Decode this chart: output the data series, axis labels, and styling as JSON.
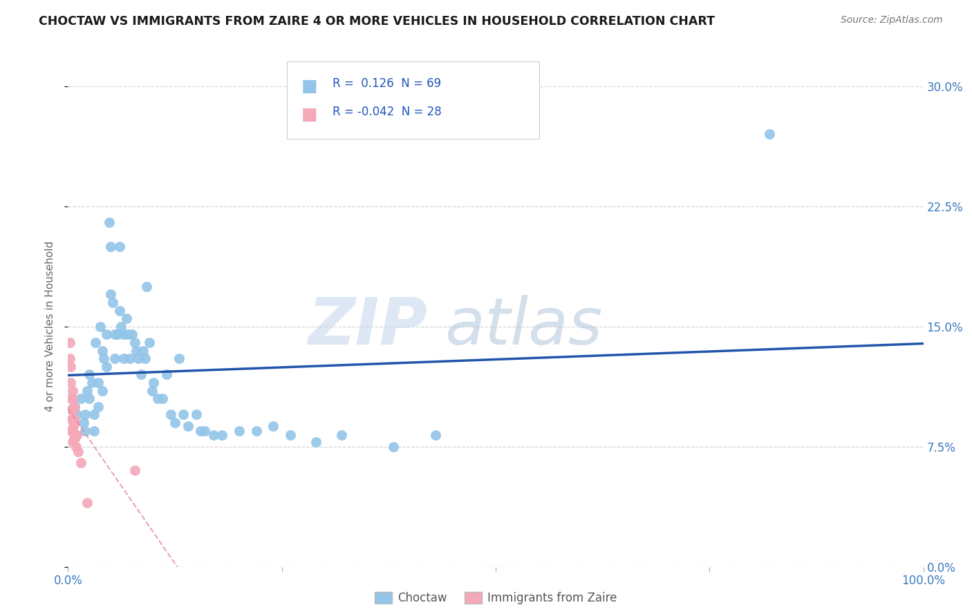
{
  "title": "CHOCTAW VS IMMIGRANTS FROM ZAIRE 4 OR MORE VEHICLES IN HOUSEHOLD CORRELATION CHART",
  "source": "Source: ZipAtlas.com",
  "ylabel": "4 or more Vehicles in Household",
  "choctaw_R": 0.126,
  "choctaw_N": 69,
  "zaire_R": -0.042,
  "zaire_N": 28,
  "xlim": [
    0.0,
    1.0
  ],
  "ylim": [
    0.0,
    0.3
  ],
  "xticks": [
    0.0,
    0.25,
    0.5,
    0.75,
    1.0
  ],
  "xtick_labels_show": [
    "0.0%",
    "",
    "",
    "",
    "100.0%"
  ],
  "yticks": [
    0.0,
    0.075,
    0.15,
    0.225,
    0.3
  ],
  "ytick_labels": [
    "0.0%",
    "7.5%",
    "15.0%",
    "22.5%",
    "30.0%"
  ],
  "choctaw_color": "#92c5e8",
  "zaire_color": "#f4a8b8",
  "choctaw_line_color": "#2255aa",
  "zaire_line_color": "#e88098",
  "background_color": "#ffffff",
  "watermark_zip": "ZIP",
  "watermark_atlas": "atlas",
  "choctaw_x": [
    0.008,
    0.01,
    0.015,
    0.018,
    0.02,
    0.02,
    0.022,
    0.025,
    0.025,
    0.028,
    0.03,
    0.03,
    0.032,
    0.035,
    0.035,
    0.038,
    0.04,
    0.04,
    0.042,
    0.045,
    0.045,
    0.048,
    0.05,
    0.05,
    0.052,
    0.055,
    0.055,
    0.058,
    0.06,
    0.06,
    0.062,
    0.065,
    0.065,
    0.068,
    0.07,
    0.072,
    0.075,
    0.078,
    0.08,
    0.082,
    0.085,
    0.088,
    0.09,
    0.092,
    0.095,
    0.098,
    0.1,
    0.105,
    0.11,
    0.115,
    0.12,
    0.125,
    0.13,
    0.135,
    0.14,
    0.15,
    0.155,
    0.16,
    0.17,
    0.18,
    0.2,
    0.22,
    0.24,
    0.26,
    0.29,
    0.32,
    0.38,
    0.43,
    0.82
  ],
  "choctaw_y": [
    0.1,
    0.095,
    0.105,
    0.09,
    0.095,
    0.085,
    0.11,
    0.12,
    0.105,
    0.115,
    0.095,
    0.085,
    0.14,
    0.115,
    0.1,
    0.15,
    0.135,
    0.11,
    0.13,
    0.145,
    0.125,
    0.215,
    0.2,
    0.17,
    0.165,
    0.145,
    0.13,
    0.145,
    0.2,
    0.16,
    0.15,
    0.145,
    0.13,
    0.155,
    0.145,
    0.13,
    0.145,
    0.14,
    0.135,
    0.13,
    0.12,
    0.135,
    0.13,
    0.175,
    0.14,
    0.11,
    0.115,
    0.105,
    0.105,
    0.12,
    0.095,
    0.09,
    0.13,
    0.095,
    0.088,
    0.095,
    0.085,
    0.085,
    0.082,
    0.082,
    0.085,
    0.085,
    0.088,
    0.082,
    0.078,
    0.082,
    0.075,
    0.082,
    0.27
  ],
  "zaire_x": [
    0.002,
    0.002,
    0.003,
    0.003,
    0.004,
    0.004,
    0.004,
    0.004,
    0.005,
    0.005,
    0.005,
    0.005,
    0.005,
    0.005,
    0.006,
    0.006,
    0.007,
    0.007,
    0.007,
    0.008,
    0.008,
    0.009,
    0.009,
    0.01,
    0.012,
    0.015,
    0.022,
    0.078
  ],
  "zaire_y": [
    0.14,
    0.13,
    0.125,
    0.115,
    0.105,
    0.098,
    0.092,
    0.085,
    0.11,
    0.105,
    0.098,
    0.092,
    0.085,
    0.078,
    0.098,
    0.088,
    0.1,
    0.092,
    0.08,
    0.09,
    0.08,
    0.082,
    0.075,
    0.082,
    0.072,
    0.065,
    0.04,
    0.06
  ]
}
